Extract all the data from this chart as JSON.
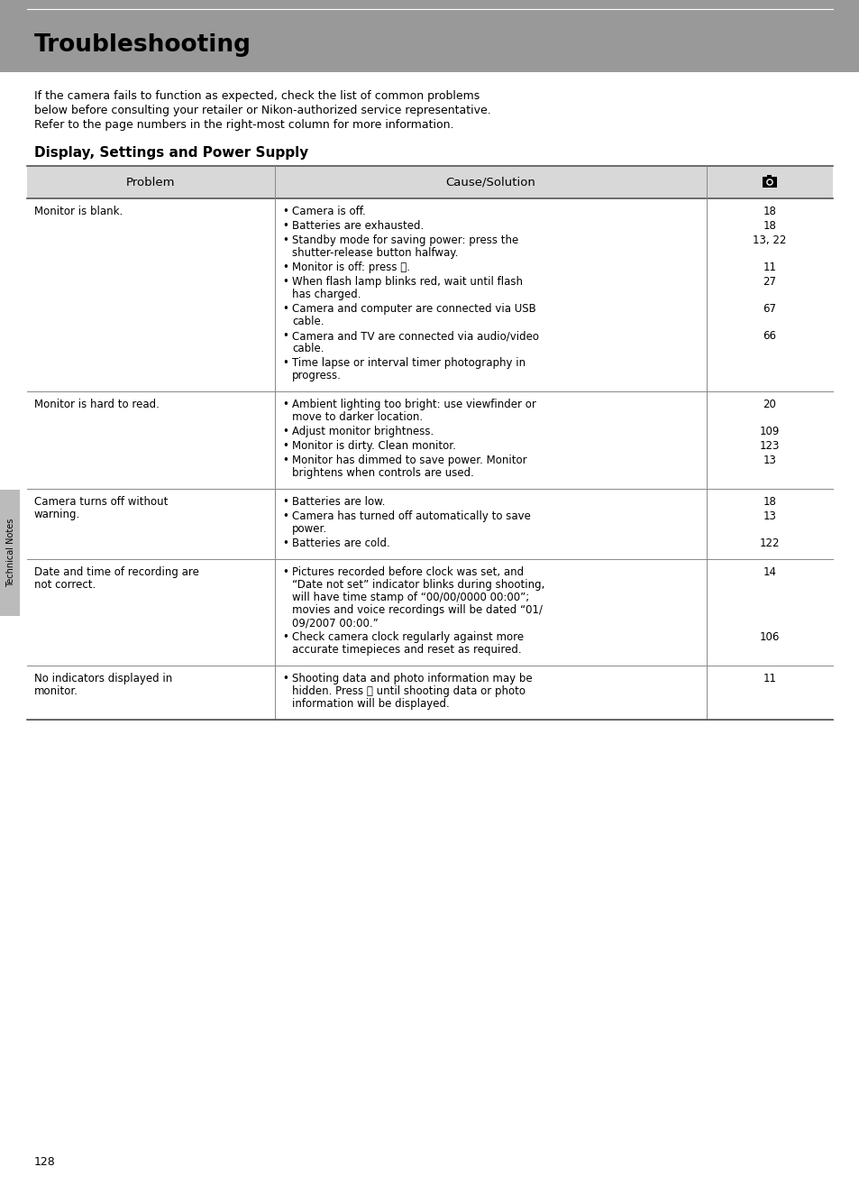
{
  "page_bg": "#ffffff",
  "header_bg": "#999999",
  "header_title": "Troubleshooting",
  "intro_lines": [
    "If the camera fails to function as expected, check the list of common problems",
    "below before consulting your retailer or Nikon-authorized service representative.",
    "Refer to the page numbers in the right-most column for more information."
  ],
  "section_title": "Display, Settings and Power Supply",
  "table_header_bg": "#d8d8d8",
  "table_header_problem": "Problem",
  "table_header_cause": "Cause/Solution",
  "rows": [
    {
      "problem": [
        "Monitor is blank."
      ],
      "causes": [
        {
          "lines": [
            "Camera is off."
          ],
          "page": "18"
        },
        {
          "lines": [
            "Batteries are exhausted."
          ],
          "page": "18"
        },
        {
          "lines": [
            "Standby mode for saving power: press the",
            "shutter-release button halfway."
          ],
          "page": "13, 22"
        },
        {
          "lines": [
            "Monitor is off: press ⧈."
          ],
          "page": "11"
        },
        {
          "lines": [
            "When flash lamp blinks red, wait until flash",
            "has charged."
          ],
          "page": "27"
        },
        {
          "lines": [
            "Camera and computer are connected via USB",
            "cable."
          ],
          "page": "67"
        },
        {
          "lines": [
            "Camera and TV are connected via audio/video",
            "cable."
          ],
          "page": "66"
        },
        {
          "lines": [
            "Time lapse or interval timer photography in",
            "progress."
          ],
          "page": ""
        }
      ]
    },
    {
      "problem": [
        "Monitor is hard to read."
      ],
      "causes": [
        {
          "lines": [
            "Ambient lighting too bright: use viewfinder or",
            "move to darker location."
          ],
          "page": "20"
        },
        {
          "lines": [
            "Adjust monitor brightness."
          ],
          "page": "109"
        },
        {
          "lines": [
            "Monitor is dirty. Clean monitor."
          ],
          "page": "123"
        },
        {
          "lines": [
            "Monitor has dimmed to save power. Monitor",
            "brightens when controls are used."
          ],
          "page": "13"
        }
      ]
    },
    {
      "problem": [
        "Camera turns off without",
        "warning."
      ],
      "causes": [
        {
          "lines": [
            "Batteries are low."
          ],
          "page": "18"
        },
        {
          "lines": [
            "Camera has turned off automatically to save",
            "power."
          ],
          "page": "13"
        },
        {
          "lines": [
            "Batteries are cold."
          ],
          "page": "122"
        }
      ]
    },
    {
      "problem": [
        "Date and time of recording are",
        "not correct."
      ],
      "causes": [
        {
          "lines": [
            "Pictures recorded before clock was set, and",
            "“Date not set” indicator blinks during shooting,",
            "will have time stamp of “00/00/0000 00:00”;",
            "movies and voice recordings will be dated “01/",
            "09/2007 00:00.”"
          ],
          "page": "14"
        },
        {
          "lines": [
            "Check camera clock regularly against more",
            "accurate timepieces and reset as required."
          ],
          "page": "106"
        }
      ]
    },
    {
      "problem": [
        "No indicators displayed in",
        "monitor."
      ],
      "causes": [
        {
          "lines": [
            "Shooting data and photo information may be",
            "hidden. Press ⧈ until shooting data or photo",
            "information will be displayed."
          ],
          "page": "11"
        }
      ]
    }
  ],
  "page_number": "128",
  "side_label": "Technical Notes"
}
